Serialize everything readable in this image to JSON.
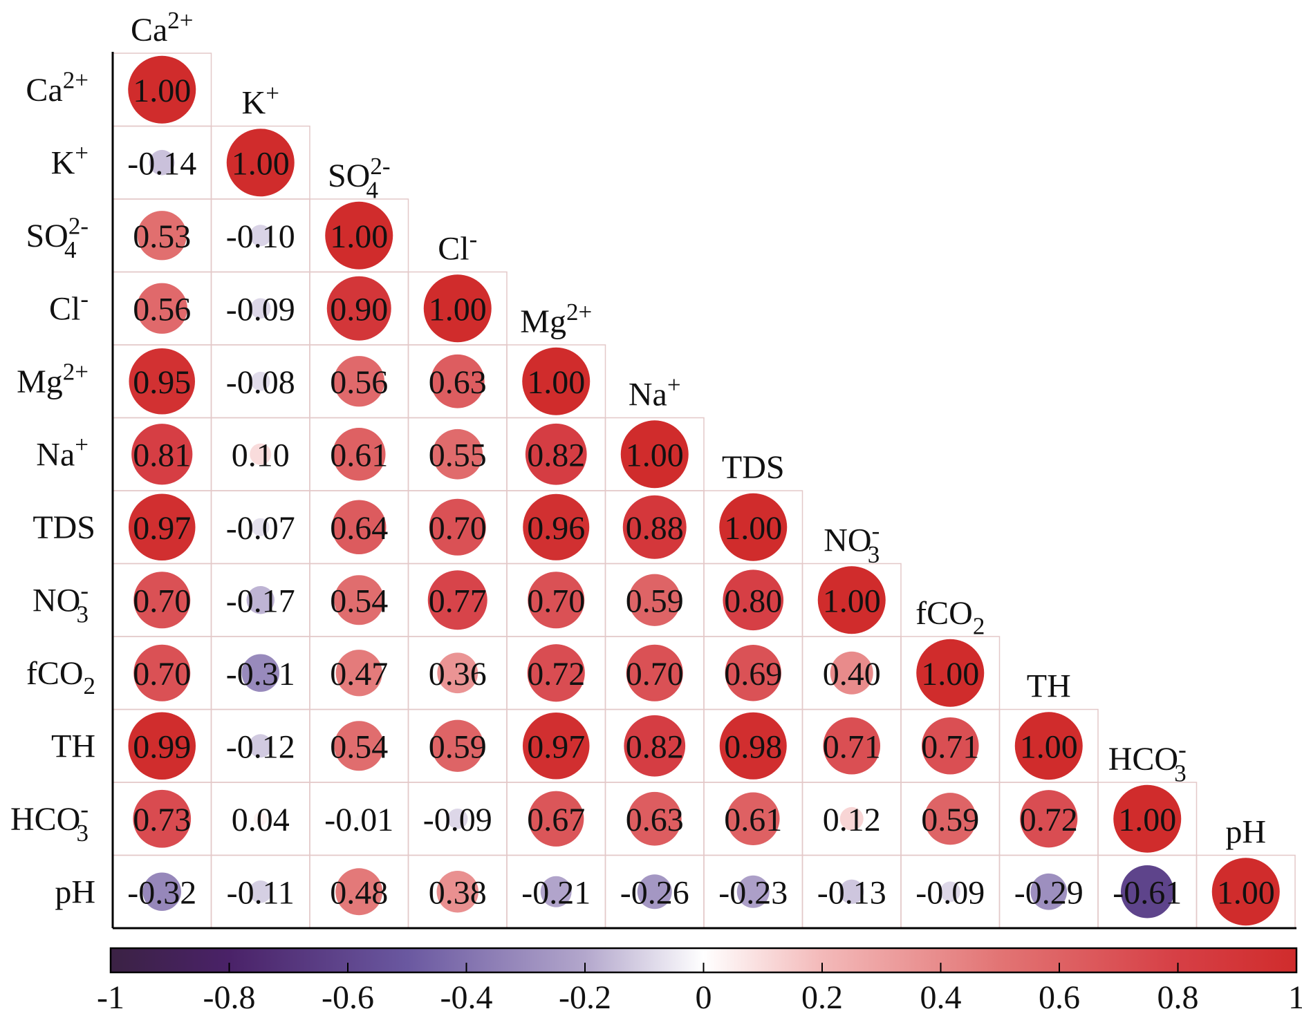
{
  "chart_data": {
    "type": "heatmap",
    "title": "",
    "variables": [
      {
        "base": "Ca",
        "sup": "2+",
        "sub": ""
      },
      {
        "base": "K",
        "sup": "+",
        "sub": ""
      },
      {
        "base": "SO",
        "sup": "2-",
        "sub": "4"
      },
      {
        "base": "Cl",
        "sup": "-",
        "sub": ""
      },
      {
        "base": "Mg",
        "sup": "2+",
        "sub": ""
      },
      {
        "base": "Na",
        "sup": "+",
        "sub": ""
      },
      {
        "base": "TDS",
        "sup": "",
        "sub": ""
      },
      {
        "base": "NO",
        "sup": "-",
        "sub": "3"
      },
      {
        "base": "fCO",
        "sup": "",
        "sub": "2"
      },
      {
        "base": "TH",
        "sup": "",
        "sub": ""
      },
      {
        "base": "HCO",
        "sup": "-",
        "sub": "3"
      },
      {
        "base": "pH",
        "sup": "",
        "sub": ""
      }
    ],
    "matrix_lower": [
      [
        "1.00"
      ],
      [
        "-0.14",
        "1.00"
      ],
      [
        "0.53",
        "-0.10",
        "1.00"
      ],
      [
        "0.56",
        "-0.09",
        "0.90",
        "1.00"
      ],
      [
        "0.95",
        "-0.08",
        "0.56",
        "0.63",
        "1.00"
      ],
      [
        "0.81",
        "0.10",
        "0.61",
        "0.55",
        "0.82",
        "1.00"
      ],
      [
        "0.97",
        "-0.07",
        "0.64",
        "0.70",
        "0.96",
        "0.88",
        "1.00"
      ],
      [
        "0.70",
        "-0.17",
        "0.54",
        "0.77",
        "0.70",
        "0.59",
        "0.80",
        "1.00"
      ],
      [
        "0.70",
        "-0.31",
        "0.47",
        "0.36",
        "0.72",
        "0.70",
        "0.69",
        "0.40",
        "1.00"
      ],
      [
        "0.99",
        "-0.12",
        "0.54",
        "0.59",
        "0.97",
        "0.82",
        "0.98",
        "0.71",
        "0.71",
        "1.00"
      ],
      [
        "0.73",
        "0.04",
        "-0.01",
        "-0.09",
        "0.67",
        "0.63",
        "0.61",
        "0.12",
        "0.59",
        "0.72",
        "1.00"
      ],
      [
        "-0.32",
        "-0.11",
        "0.48",
        "0.38",
        "-0.21",
        "-0.26",
        "-0.23",
        "-0.13",
        "-0.09",
        "-0.29",
        "-0.61",
        "1.00"
      ]
    ],
    "colorbar": {
      "range": [
        -1,
        1
      ],
      "ticks": [
        "-1",
        "-0.8",
        "-0.6",
        "-0.4",
        "-0.2",
        "0",
        "0.2",
        "0.4",
        "0.6",
        "0.8",
        "1"
      ],
      "colors": {
        "negative_end": "#3d1f4f",
        "negative_mid": "#6a5aa0",
        "zero": "#ffffff",
        "positive_mid": "#e08080",
        "positive_end": "#d22f2f"
      }
    },
    "cell_border_color": "#e3c8c8"
  }
}
